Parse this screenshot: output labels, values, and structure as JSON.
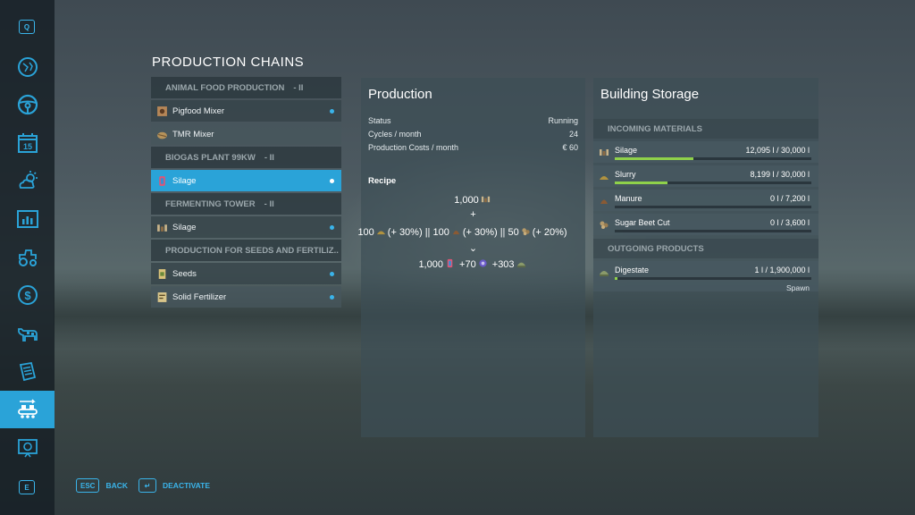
{
  "sidebar": {
    "top_key": "Q",
    "bottom_key": "E",
    "items": [
      {
        "icon": "map-icon"
      },
      {
        "icon": "steering-wheel-icon"
      },
      {
        "icon": "calendar-icon",
        "label": "15"
      },
      {
        "icon": "weather-icon"
      },
      {
        "icon": "statistics-icon"
      },
      {
        "icon": "tractor-icon"
      },
      {
        "icon": "finances-icon"
      },
      {
        "icon": "animals-icon"
      },
      {
        "icon": "contracts-icon"
      },
      {
        "icon": "production-icon",
        "active": true
      },
      {
        "icon": "help-icon"
      }
    ]
  },
  "page_title": "PRODUCTION CHAINS",
  "chains": {
    "groups": [
      {
        "name": "ANIMAL FOOD PRODUCTION",
        "level": "- II",
        "items": [
          {
            "label": "Pigfood Mixer",
            "dot": true
          },
          {
            "label": "TMR Mixer",
            "dot": false
          }
        ]
      },
      {
        "name": "BIOGAS PLANT 99KW",
        "level": "- II",
        "items": [
          {
            "label": "Silage",
            "dot": true,
            "selected": true
          }
        ]
      },
      {
        "name": "FERMENTING TOWER",
        "level": "- II",
        "items": [
          {
            "label": "Silage",
            "dot": true
          }
        ]
      },
      {
        "name": "PRODUCTION FOR SEEDS AND FERTILIZ..",
        "level": "",
        "items": [
          {
            "label": "Seeds",
            "dot": true
          },
          {
            "label": "Solid Fertilizer",
            "dot": true
          }
        ]
      }
    ]
  },
  "production": {
    "title": "Production",
    "rows": [
      {
        "label": "Status",
        "value": "Running"
      },
      {
        "label": "Cycles / month",
        "value": "24"
      },
      {
        "label": "Production Costs / month",
        "value": "€ 60"
      }
    ],
    "recipe_title": "Recipe",
    "recipe": {
      "input_main": "1,000",
      "plus": "+",
      "in1_amount": "100",
      "in1_bonus": "(+ 30%)",
      "in2_amount": "|| 100",
      "in2_bonus": "(+ 30%)",
      "in3_amount": "|| 50",
      "in3_bonus": "(+ 20%)",
      "arrow": "⌄",
      "out1": "1,000",
      "out2": "+70",
      "out3": "+303"
    }
  },
  "storage": {
    "title": "Building Storage",
    "incoming_label": "INCOMING MATERIALS",
    "incoming": [
      {
        "name": "Silage",
        "value": "12,095 l / 30,000 l",
        "fill": 0.4,
        "color": "#8fd14a"
      },
      {
        "name": "Slurry",
        "value": "8,199 l / 30,000 l",
        "fill": 0.27,
        "color": "#8fd14a"
      },
      {
        "name": "Manure",
        "value": "0 l / 7,200 l",
        "fill": 0.0,
        "color": "#d8553f"
      },
      {
        "name": "Sugar Beet Cut",
        "value": "0 l / 3,600 l",
        "fill": 0.0,
        "color": "#d8553f"
      }
    ],
    "outgoing_label": "OUTGOING PRODUCTS",
    "outgoing": [
      {
        "name": "Digestate",
        "value": "1 l / 1,900,000 l",
        "fill": 0.0,
        "color": "#8fd14a",
        "mode": "Spawn"
      }
    ]
  },
  "buttons": {
    "back_key": "ESC",
    "back_label": "BACK",
    "deactivate_key": "↵",
    "deactivate_label": "DEACTIVATE"
  }
}
